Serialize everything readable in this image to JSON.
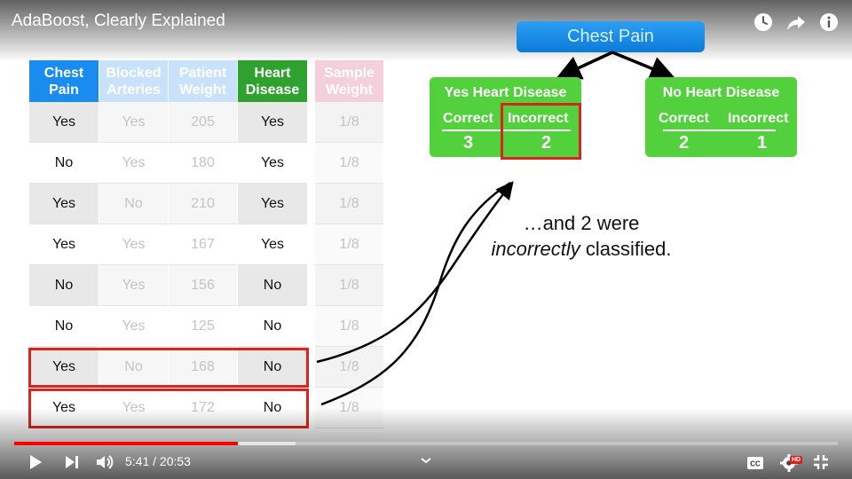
{
  "video": {
    "title": "AdaBoost, Clearly Explained"
  },
  "table": {
    "headers": [
      {
        "label": "Chest\nPain",
        "bg": "#1a8cf0",
        "color": "#ffffff"
      },
      {
        "label": "Blocked\nArteries",
        "bg": "#c9e2fb",
        "color": "#ffffff"
      },
      {
        "label": "Patient\nWeight",
        "bg": "#c9e2fb",
        "color": "#ffffff"
      },
      {
        "label": "Heart\nDisease",
        "bg": "#2ea12e",
        "color": "#ffffff"
      },
      {
        "label": "Sample\nWeight",
        "bg": "#f4cfdc",
        "color": "#ffffff"
      }
    ],
    "rows": [
      [
        "Yes",
        "Yes",
        "205",
        "Yes",
        "1/8"
      ],
      [
        "No",
        "Yes",
        "180",
        "Yes",
        "1/8"
      ],
      [
        "Yes",
        "No",
        "210",
        "Yes",
        "1/8"
      ],
      [
        "Yes",
        "Yes",
        "167",
        "Yes",
        "1/8"
      ],
      [
        "No",
        "Yes",
        "156",
        "No",
        "1/8"
      ],
      [
        "No",
        "Yes",
        "125",
        "No",
        "1/8"
      ],
      [
        "Yes",
        "No",
        "168",
        "No",
        "1/8"
      ],
      [
        "Yes",
        "Yes",
        "172",
        "No",
        "1/8"
      ]
    ],
    "highlighted_rows": [
      6,
      7
    ]
  },
  "tree": {
    "root": "Chest Pain",
    "left_leaf": {
      "title": "Yes Heart Disease",
      "correct_label": "Correct",
      "incorrect_label": "Incorrect",
      "correct": "3",
      "incorrect": "2"
    },
    "right_leaf": {
      "title": "No Heart Disease",
      "correct_label": "Correct",
      "incorrect_label": "Incorrect",
      "correct": "2",
      "incorrect": "1"
    }
  },
  "caption": {
    "line1": "…and 2 were",
    "line2_em": "incorrectly",
    "line2_rest": " classified."
  },
  "player": {
    "current_time": "5:41",
    "duration": "20:53",
    "time_display": "5:41 / 20:53",
    "played_fraction": 0.272,
    "buffered_fraction": 0.342,
    "hd_badge": "HD"
  },
  "colors": {
    "accent_red": "#d8261f",
    "leaf_green": "#53d13d",
    "root_blue": "#0c7ad8",
    "progress_red": "#ff0000"
  },
  "icons": [
    "watch-later-icon",
    "share-icon",
    "info-icon",
    "play-icon",
    "next-icon",
    "volume-icon",
    "chevron-up-icon",
    "captions-icon",
    "settings-icon",
    "exit-fullscreen-icon"
  ]
}
